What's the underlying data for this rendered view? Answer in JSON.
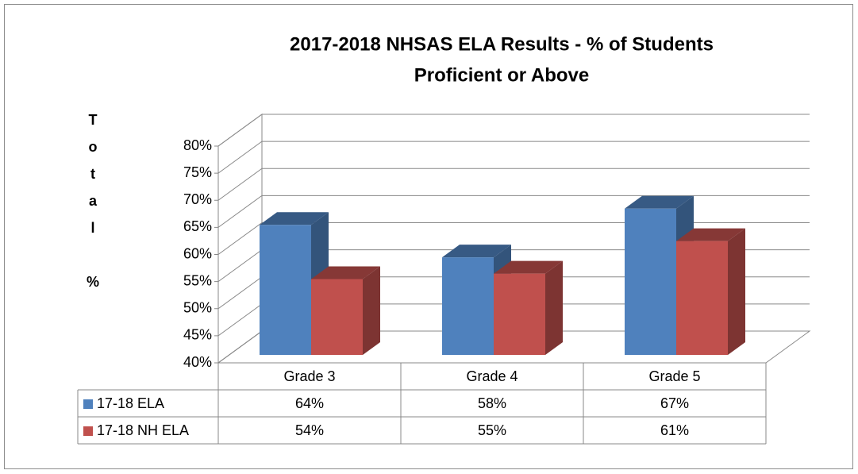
{
  "chart_data": {
    "type": "bar3d",
    "title": [
      "2017-2018 NHSAS ELA Results - % of Students",
      "Proficient or Above"
    ],
    "y_label": "Total %",
    "categories": [
      "Grade 3",
      "Grade 4",
      "Grade 5"
    ],
    "series": [
      {
        "name": "17-18 ELA",
        "color": "#4f81bd",
        "values": [
          64,
          58,
          67
        ],
        "value_labels": [
          "64%",
          "58%",
          "67%"
        ]
      },
      {
        "name": "17-18 NH ELA",
        "color": "#c0504d",
        "values": [
          54,
          55,
          61
        ],
        "value_labels": [
          "54%",
          "55%",
          "61%"
        ]
      }
    ],
    "ylim": [
      40,
      80
    ],
    "yticks": [
      {
        "value": 40,
        "label": "40%"
      },
      {
        "value": 45,
        "label": "45%"
      },
      {
        "value": 50,
        "label": "50%"
      },
      {
        "value": 55,
        "label": "55%"
      },
      {
        "value": 60,
        "label": "60%"
      },
      {
        "value": 65,
        "label": "65%"
      },
      {
        "value": 70,
        "label": "70%"
      },
      {
        "value": 75,
        "label": "75%"
      },
      {
        "value": 80,
        "label": "80%"
      }
    ],
    "grid": true,
    "data_table": true
  }
}
